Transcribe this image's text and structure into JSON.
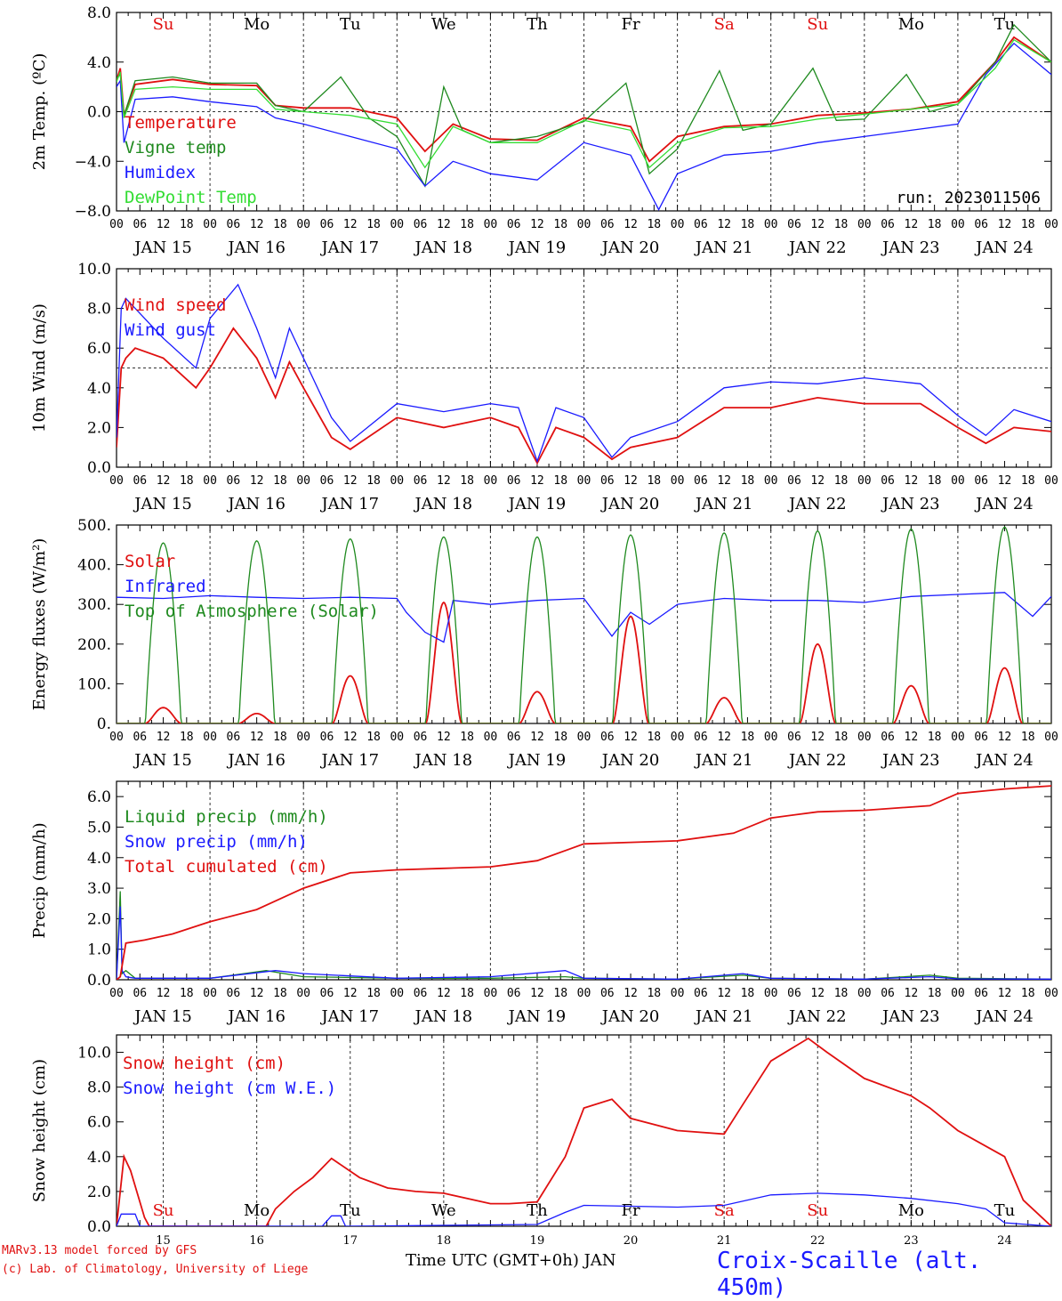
{
  "footer": {
    "credit_line1": "MARv3.13 model forced by GFS",
    "credit_line2": "(c) Lab. of Climatology, University of Liege",
    "x_caption": "Time UTC (GMT+0h) JAN",
    "station": "Croix-Scaille (alt. 450m)"
  },
  "colors": {
    "red": "#e01010",
    "green": "#1f8a1f",
    "blue": "#1a1aff",
    "lightgreen": "#33dd33",
    "black": "#000000"
  },
  "chart_data": [
    {
      "type": "line",
      "ylabel": "2m Temp. (ºC)",
      "ylim": [
        -8.0,
        8.0
      ],
      "yticks": [
        "8.0",
        "4.0",
        "0.0",
        "−4.0",
        "−8.0"
      ],
      "hlines": [
        0.0
      ],
      "weekdays": [
        "Su",
        "Mo",
        "Tu",
        "We",
        "Th",
        "Fr",
        "Sa",
        "Su",
        "Mo",
        "Tu"
      ],
      "weekday_colors": [
        "red",
        "black",
        "black",
        "black",
        "black",
        "black",
        "red",
        "red",
        "black",
        "black"
      ],
      "run_label": "run: 2023011506",
      "xticks_hours": [
        "00",
        "06",
        "12",
        "18"
      ],
      "dates": [
        "JAN 15",
        "JAN 16",
        "JAN 17",
        "JAN 18",
        "JAN 19",
        "JAN 20",
        "JAN 21",
        "JAN 22",
        "JAN 23",
        "JAN 24"
      ],
      "x_unit": "days since JAN 15 00 UTC",
      "series": [
        {
          "name": "Temperature",
          "color": "red",
          "x": [
            0,
            0.04,
            0.08,
            0.2,
            0.6,
            1.0,
            1.5,
            1.7,
            2.0,
            2.5,
            3.0,
            3.3,
            3.6,
            4.0,
            4.5,
            5.0,
            5.5,
            5.7,
            6.0,
            6.5,
            7.0,
            7.5,
            8.0,
            8.5,
            9.0,
            9.4,
            9.6,
            10.0
          ],
          "values": [
            2.5,
            3.5,
            -0.3,
            2.2,
            2.6,
            2.2,
            2.1,
            0.5,
            0.3,
            0.3,
            -0.5,
            -3.2,
            -1.0,
            -2.2,
            -2.3,
            -0.5,
            -1.2,
            -4.0,
            -2.0,
            -1.2,
            -1.0,
            -0.3,
            -0.1,
            0.2,
            0.8,
            4.0,
            6.0,
            4.0
          ]
        },
        {
          "name": "Vigne temp",
          "color": "green",
          "x": [
            0,
            0.04,
            0.08,
            0.2,
            0.6,
            1.0,
            1.5,
            1.7,
            2.0,
            2.4,
            2.7,
            3.0,
            3.3,
            3.5,
            3.7,
            4.0,
            4.5,
            5.0,
            5.45,
            5.7,
            6.0,
            6.45,
            6.7,
            7.0,
            7.45,
            7.7,
            8.0,
            8.45,
            8.7,
            9.0,
            9.4,
            9.6,
            10.0
          ],
          "values": [
            2.7,
            3.0,
            -0.3,
            2.5,
            2.8,
            2.3,
            2.3,
            0.5,
            0.0,
            2.8,
            -0.5,
            -2.0,
            -6.0,
            2.0,
            -1.5,
            -2.5,
            -2.0,
            -0.8,
            2.3,
            -5.0,
            -3.0,
            3.3,
            -1.5,
            -1.0,
            3.5,
            -0.7,
            -0.6,
            3.0,
            0.0,
            0.6,
            4.0,
            7.0,
            4.0
          ]
        },
        {
          "name": "Humidex",
          "color": "blue",
          "x": [
            0,
            0.04,
            0.08,
            0.2,
            0.6,
            1.0,
            1.5,
            1.7,
            2.0,
            2.5,
            3.0,
            3.3,
            3.6,
            4.0,
            4.5,
            5.0,
            5.5,
            5.8,
            6.0,
            6.5,
            7.0,
            7.5,
            8.0,
            8.5,
            9.0,
            9.3,
            9.6,
            10.0
          ],
          "values": [
            2.0,
            2.5,
            -2.5,
            1.0,
            1.2,
            0.8,
            0.4,
            -0.5,
            -1.0,
            -2.0,
            -3.0,
            -6.0,
            -4.0,
            -5.0,
            -5.5,
            -2.5,
            -3.5,
            -7.9,
            -5.0,
            -3.5,
            -3.2,
            -2.5,
            -2.0,
            -1.5,
            -1.0,
            3.0,
            5.5,
            3.0
          ]
        },
        {
          "name": "DewPoint Temp",
          "color": "lightgreen",
          "x": [
            0,
            0.04,
            0.08,
            0.2,
            0.6,
            1.0,
            1.5,
            1.7,
            2.0,
            2.5,
            3.0,
            3.3,
            3.6,
            4.0,
            4.5,
            5.0,
            5.5,
            5.7,
            6.0,
            6.5,
            7.0,
            7.5,
            8.0,
            8.5,
            9.0,
            9.4,
            9.6,
            10.0
          ],
          "values": [
            2.4,
            3.2,
            -0.5,
            1.8,
            2.0,
            1.8,
            1.8,
            0.2,
            0.0,
            -0.3,
            -1.0,
            -4.5,
            -1.2,
            -2.5,
            -2.5,
            -0.7,
            -1.5,
            -4.5,
            -2.5,
            -1.3,
            -1.2,
            -0.6,
            -0.2,
            0.2,
            0.6,
            3.5,
            5.8,
            4.0
          ]
        }
      ]
    },
    {
      "type": "line",
      "ylabel": "10m Wind (m/s)",
      "ylim": [
        0,
        10
      ],
      "yticks": [
        "10.0",
        "8.0",
        "6.0",
        "4.0",
        "2.0",
        "0.0"
      ],
      "hlines": [
        5.0
      ],
      "xticks_hours": [
        "00",
        "06",
        "12",
        "18"
      ],
      "dates": [
        "JAN 15",
        "JAN 16",
        "JAN 17",
        "JAN 18",
        "JAN 19",
        "JAN 20",
        "JAN 21",
        "JAN 22",
        "JAN 23",
        "JAN 24"
      ],
      "series": [
        {
          "name": "Wind speed",
          "color": "red",
          "x": [
            0,
            0.05,
            0.1,
            0.2,
            0.5,
            0.85,
            1.0,
            1.25,
            1.5,
            1.7,
            1.85,
            2.0,
            2.3,
            2.5,
            3.0,
            3.5,
            4.0,
            4.3,
            4.5,
            4.7,
            5.0,
            5.3,
            5.5,
            6.0,
            6.5,
            7.0,
            7.5,
            8.0,
            8.6,
            9.0,
            9.3,
            9.6,
            10.0
          ],
          "values": [
            1.0,
            5.0,
            5.5,
            6.0,
            5.5,
            4.0,
            5.0,
            7.0,
            5.5,
            3.5,
            5.3,
            4.0,
            1.5,
            0.9,
            2.5,
            2.0,
            2.5,
            2.0,
            0.2,
            2.0,
            1.5,
            0.4,
            1.0,
            1.5,
            3.0,
            3.0,
            3.5,
            3.2,
            3.2,
            2.0,
            1.2,
            2.0,
            1.8
          ]
        },
        {
          "name": "Wind gust",
          "color": "blue",
          "x": [
            0,
            0.05,
            0.1,
            0.2,
            0.5,
            0.85,
            1.0,
            1.3,
            1.5,
            1.7,
            1.85,
            2.0,
            2.3,
            2.5,
            3.0,
            3.5,
            4.0,
            4.3,
            4.5,
            4.7,
            5.0,
            5.3,
            5.5,
            6.0,
            6.5,
            7.0,
            7.5,
            8.0,
            8.6,
            9.0,
            9.3,
            9.6,
            10.0
          ],
          "values": [
            1.5,
            8.0,
            8.5,
            8.0,
            6.5,
            5.0,
            7.5,
            9.2,
            7.0,
            4.5,
            7.0,
            5.5,
            2.5,
            1.3,
            3.2,
            2.8,
            3.2,
            3.0,
            0.3,
            3.0,
            2.5,
            0.5,
            1.5,
            2.3,
            4.0,
            4.3,
            4.2,
            4.5,
            4.2,
            2.6,
            1.6,
            2.9,
            2.3
          ]
        }
      ]
    },
    {
      "type": "line",
      "ylabel": "Energy fluxes (W/m²)",
      "ylim": [
        0,
        500
      ],
      "yticks": [
        "500.",
        "400.",
        "300.",
        "200.",
        "100.",
        "0."
      ],
      "xticks_hours": [
        "00",
        "06",
        "12",
        "18"
      ],
      "dates": [
        "JAN 15",
        "JAN 16",
        "JAN 17",
        "JAN 18",
        "JAN 19",
        "JAN 20",
        "JAN 21",
        "JAN 22",
        "JAN 23",
        "JAN 24"
      ],
      "series": [
        {
          "name": "Solar",
          "color": "red",
          "peaks": [
            40,
            25,
            120,
            305,
            80,
            270,
            65,
            200,
            95,
            140
          ]
        },
        {
          "name": "Infrared",
          "color": "blue",
          "x": [
            0,
            0.5,
            1.0,
            1.5,
            2.0,
            2.5,
            3.0,
            3.1,
            3.3,
            3.5,
            3.6,
            4.0,
            4.5,
            5.0,
            5.3,
            5.5,
            5.7,
            6.0,
            6.5,
            7.0,
            7.5,
            8.0,
            8.5,
            9.0,
            9.5,
            9.8,
            10.0
          ],
          "values": [
            318,
            315,
            322,
            318,
            315,
            318,
            315,
            280,
            230,
            205,
            310,
            300,
            310,
            315,
            220,
            280,
            250,
            300,
            315,
            310,
            310,
            305,
            320,
            325,
            330,
            270,
            320
          ]
        },
        {
          "name": "Top of Atmosphere (Solar)",
          "color": "green",
          "peaks": [
            455,
            460,
            465,
            470,
            470,
            475,
            480,
            485,
            490,
            495
          ]
        }
      ]
    },
    {
      "type": "line",
      "ylabel": "Precip (mm/h)",
      "ylim": [
        0,
        6.5
      ],
      "yticks": [
        "6.0",
        "5.0",
        "4.0",
        "3.0",
        "2.0",
        "1.0",
        "0.0"
      ],
      "xticks_hours": [
        "00",
        "06",
        "12",
        "18"
      ],
      "dates": [
        "JAN 15",
        "JAN 16",
        "JAN 17",
        "JAN 18",
        "JAN 19",
        "JAN 20",
        "JAN 21",
        "JAN 22",
        "JAN 23",
        "JAN 24"
      ],
      "series": [
        {
          "name": "Liquid precip (mm/h)",
          "color": "green",
          "x": [
            0,
            0.04,
            0.06,
            0.1,
            0.2,
            1.0,
            1.6,
            2.0,
            3.0,
            4.0,
            4.8,
            5.0,
            6.0,
            6.7,
            7.0,
            8.0,
            8.7,
            9.0,
            10.0
          ],
          "values": [
            0,
            2.9,
            0.2,
            0.3,
            0.05,
            0.05,
            0.3,
            0.1,
            0.05,
            0.05,
            0.1,
            0.05,
            0.02,
            0.15,
            0.05,
            0.02,
            0.15,
            0.05,
            0.02
          ]
        },
        {
          "name": "Snow precip (mm/h)",
          "color": "blue",
          "x": [
            0,
            0.04,
            0.06,
            0.1,
            0.2,
            1.0,
            1.7,
            2.0,
            3.0,
            4.0,
            4.8,
            5.0,
            6.0,
            6.7,
            7.0,
            8.0,
            8.7,
            9.0,
            10.0
          ],
          "values": [
            0,
            2.4,
            0.3,
            0.1,
            0.05,
            0.05,
            0.3,
            0.2,
            0.05,
            0.1,
            0.3,
            0.05,
            0.02,
            0.2,
            0.05,
            0.02,
            0.1,
            0.03,
            0.02
          ]
        },
        {
          "name": "Total cumulated (cm)",
          "color": "red",
          "x": [
            0,
            0.04,
            0.1,
            0.3,
            0.6,
            1.0,
            1.5,
            2.0,
            2.5,
            3.0,
            3.5,
            4.0,
            4.5,
            5.0,
            5.5,
            6.0,
            6.6,
            7.0,
            7.5,
            8.0,
            8.7,
            9.0,
            9.5,
            10.0
          ],
          "values": [
            0,
            0.1,
            1.2,
            1.3,
            1.5,
            1.9,
            2.3,
            3.0,
            3.5,
            3.6,
            3.65,
            3.7,
            3.9,
            4.45,
            4.5,
            4.55,
            4.8,
            5.3,
            5.5,
            5.55,
            5.7,
            6.1,
            6.25,
            6.35
          ]
        }
      ]
    },
    {
      "type": "line",
      "ylabel": "Snow height (cm)",
      "ylim": [
        0,
        11
      ],
      "yticks": [
        "10.0",
        "8.0",
        "6.0",
        "4.0",
        "2.0",
        "0.0"
      ],
      "weekdays": [
        "Su",
        "Mo",
        "Tu",
        "We",
        "Th",
        "Fr",
        "Sa",
        "Su",
        "Mo",
        "Tu"
      ],
      "weekday_colors": [
        "red",
        "black",
        "black",
        "black",
        "black",
        "black",
        "red",
        "red",
        "black",
        "black"
      ],
      "date_labels": [
        "15",
        "16",
        "17",
        "18",
        "19",
        "20",
        "21",
        "22",
        "23",
        "24"
      ],
      "series": [
        {
          "name": "Snow height (cm)",
          "color": "red",
          "x": [
            0,
            0.08,
            0.15,
            0.3,
            0.35,
            1.6,
            1.7,
            1.9,
            2.1,
            2.3,
            2.6,
            2.9,
            3.2,
            3.5,
            4.0,
            4.2,
            4.5,
            4.8,
            5.0,
            5.3,
            5.5,
            6.0,
            6.5,
            6.7,
            7.0,
            7.4,
            7.6,
            8.0,
            8.5,
            8.7,
            9.0,
            9.5,
            9.7,
            10.0
          ],
          "values": [
            0,
            4.0,
            3.2,
            0.5,
            0,
            0,
            1.0,
            2.0,
            2.8,
            3.9,
            2.8,
            2.2,
            2.0,
            1.9,
            1.3,
            1.3,
            1.4,
            4.0,
            6.8,
            7.3,
            6.2,
            5.5,
            5.3,
            7.0,
            9.5,
            10.8,
            10.0,
            8.5,
            7.5,
            6.8,
            5.5,
            4.0,
            1.5,
            0
          ]
        },
        {
          "name": "Snow height (cm W.E.)",
          "color": "blue",
          "x": [
            0,
            0.05,
            0.1,
            0.2,
            0.25,
            2.2,
            2.3,
            2.4,
            2.45,
            4.5,
            4.8,
            5.0,
            6.0,
            6.5,
            7.0,
            7.5,
            8.0,
            8.5,
            9.0,
            9.3,
            9.5,
            10.0
          ],
          "values": [
            0,
            0.7,
            0.7,
            0.7,
            0,
            0,
            0.6,
            0.6,
            0,
            0.1,
            0.8,
            1.2,
            1.1,
            1.2,
            1.8,
            1.9,
            1.8,
            1.6,
            1.3,
            1.0,
            0.2,
            0
          ]
        }
      ]
    }
  ]
}
